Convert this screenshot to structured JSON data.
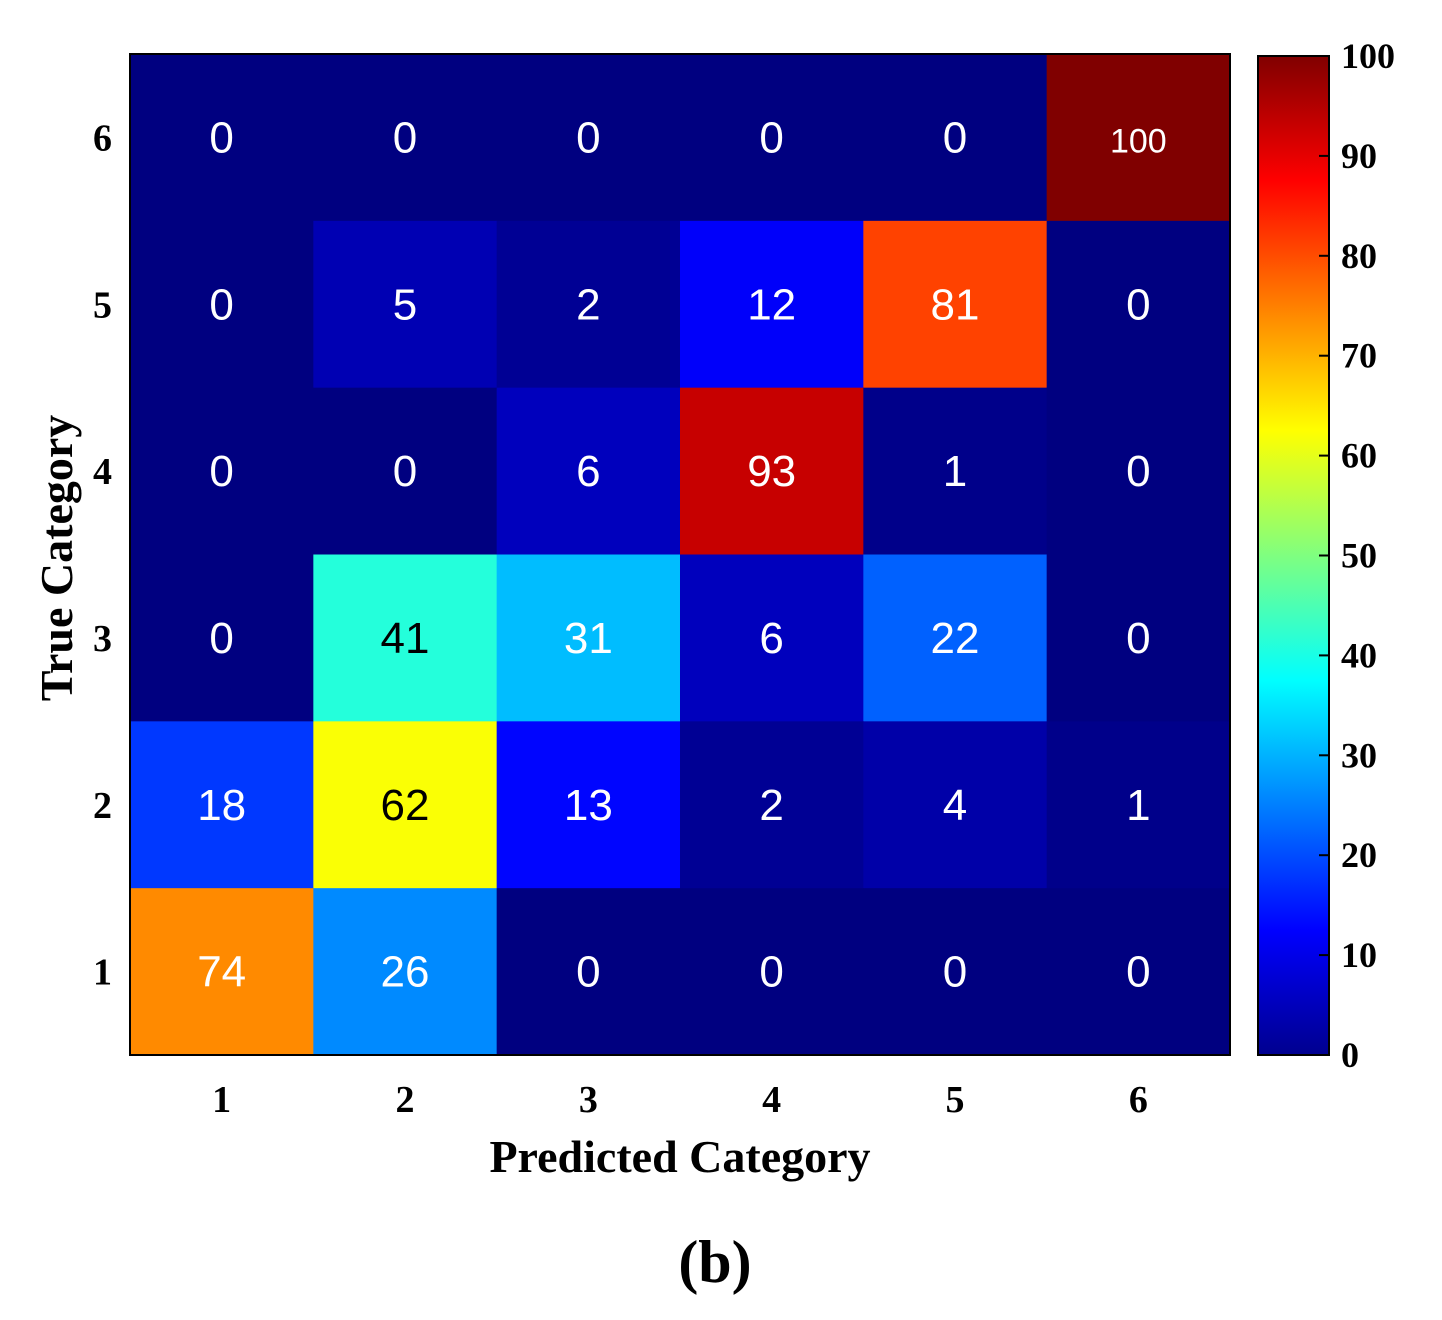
{
  "chart_data": {
    "type": "heatmap",
    "title": "",
    "xlabel": "Predicted Category",
    "ylabel": "True Category",
    "panel_label": "(b)",
    "x_categories": [
      "1",
      "2",
      "3",
      "4",
      "5",
      "6"
    ],
    "y_categories": [
      "6",
      "5",
      "4",
      "3",
      "2",
      "1"
    ],
    "matrix": [
      [
        0,
        0,
        0,
        0,
        0,
        100
      ],
      [
        0,
        5,
        2,
        12,
        81,
        0
      ],
      [
        0,
        0,
        6,
        93,
        1,
        0
      ],
      [
        0,
        41,
        31,
        6,
        22,
        0
      ],
      [
        18,
        62,
        13,
        2,
        4,
        1
      ],
      [
        74,
        26,
        0,
        0,
        0,
        0
      ]
    ],
    "colormap": "jet",
    "colorbar": {
      "range": [
        0,
        100
      ],
      "ticks": [
        "0",
        "10",
        "20",
        "30",
        "40",
        "50",
        "60",
        "70",
        "80",
        "90",
        "100"
      ]
    },
    "text_colors": {
      "light": "#ffffff",
      "dark": "#000000"
    }
  }
}
